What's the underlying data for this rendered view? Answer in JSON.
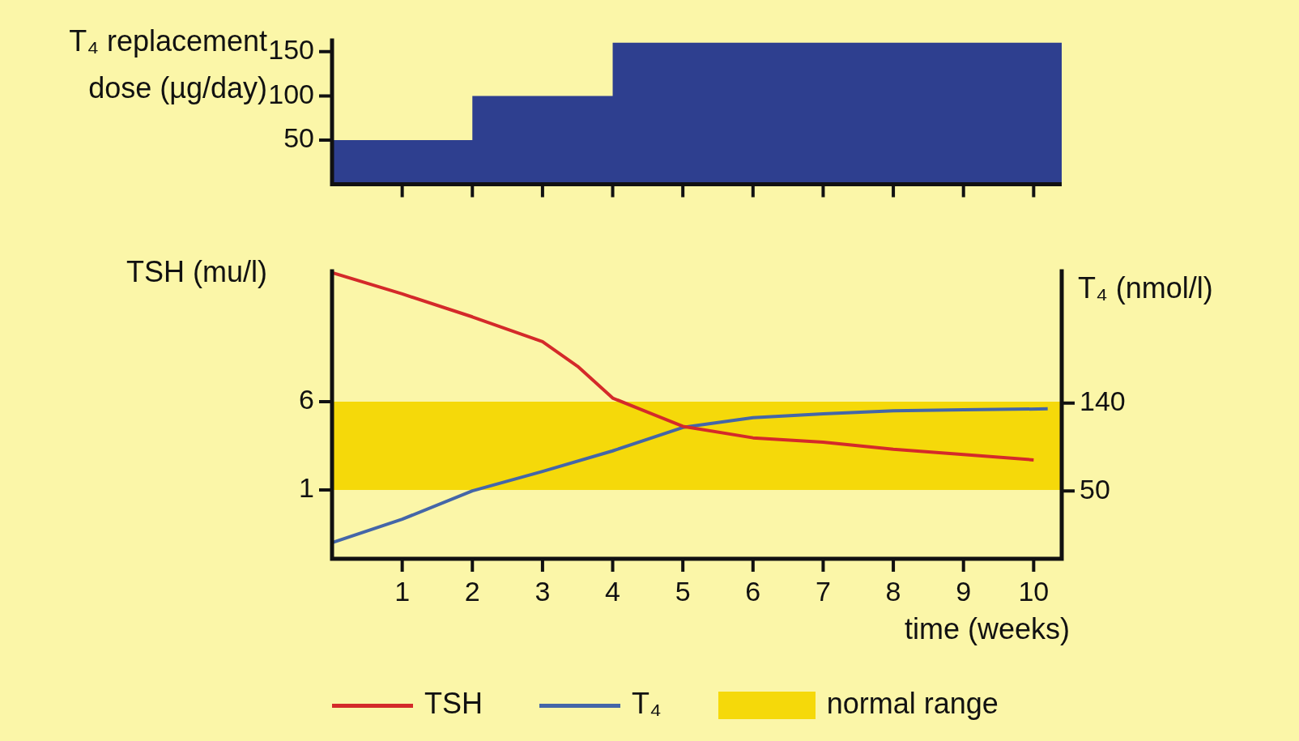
{
  "chart_data": [
    {
      "type": "area",
      "ylabel": "T₄ replacement dose (µg/day)",
      "xlim": [
        0,
        10.4
      ],
      "xticks": [
        {
          "value": 1,
          "label": null
        },
        {
          "value": 2,
          "label": null
        },
        {
          "value": 3,
          "label": null
        },
        {
          "value": 4,
          "label": null
        },
        {
          "value": 5,
          "label": null
        },
        {
          "value": 6,
          "label": null
        },
        {
          "value": 7,
          "label": null
        },
        {
          "value": 8,
          "label": null
        },
        {
          "value": 9,
          "label": null
        },
        {
          "value": 10,
          "label": null
        }
      ],
      "ylim": [
        0,
        165
      ],
      "yticks": [
        50,
        100,
        150
      ],
      "tick_labels": "y",
      "grid": false,
      "legend": false,
      "series": [
        {
          "color": "#2e3f8f",
          "x": [
            0,
            2,
            2,
            4,
            4,
            10.4
          ],
          "values": [
            50,
            50,
            100,
            100,
            160,
            160
          ]
        }
      ]
    },
    {
      "type": "line",
      "xlabel": "time (weeks)",
      "ylabel": "TSH (mu/l)",
      "y2label": "T₄ (nmol/l)",
      "xlim": [
        0,
        10.4
      ],
      "xticks": [
        1,
        2,
        3,
        4,
        5,
        6,
        7,
        8,
        9,
        10
      ],
      "ylim": [
        -2.9,
        13.5
      ],
      "yticks": [
        1,
        6
      ],
      "y2lim": [
        -19.5,
        277
      ],
      "y2ticks": [
        50,
        140
      ],
      "grid": false,
      "legend": "bottom",
      "bands": [
        {
          "axis": "y",
          "from": 1,
          "to": 6,
          "label": "normal range",
          "color": "#f5d90a"
        }
      ],
      "series": [
        {
          "name": "TSH",
          "color": "#d42a2a",
          "x": [
            0,
            1,
            2,
            3,
            3.5,
            4,
            5,
            6,
            7,
            8,
            9,
            10
          ],
          "values": [
            13.3,
            12.1,
            10.8,
            9.4,
            8.0,
            6.2,
            4.6,
            3.95,
            3.7,
            3.3,
            3.0,
            2.7
          ]
        },
        {
          "name": "T₄",
          "color": "#4466a8",
          "axis": "y2",
          "x": [
            0,
            1,
            2,
            3,
            4,
            5,
            6,
            7,
            8,
            9,
            10.2
          ],
          "values": [
            -3,
            21,
            50,
            70,
            91,
            115,
            125,
            129,
            132,
            133,
            134
          ]
        }
      ]
    }
  ]
}
